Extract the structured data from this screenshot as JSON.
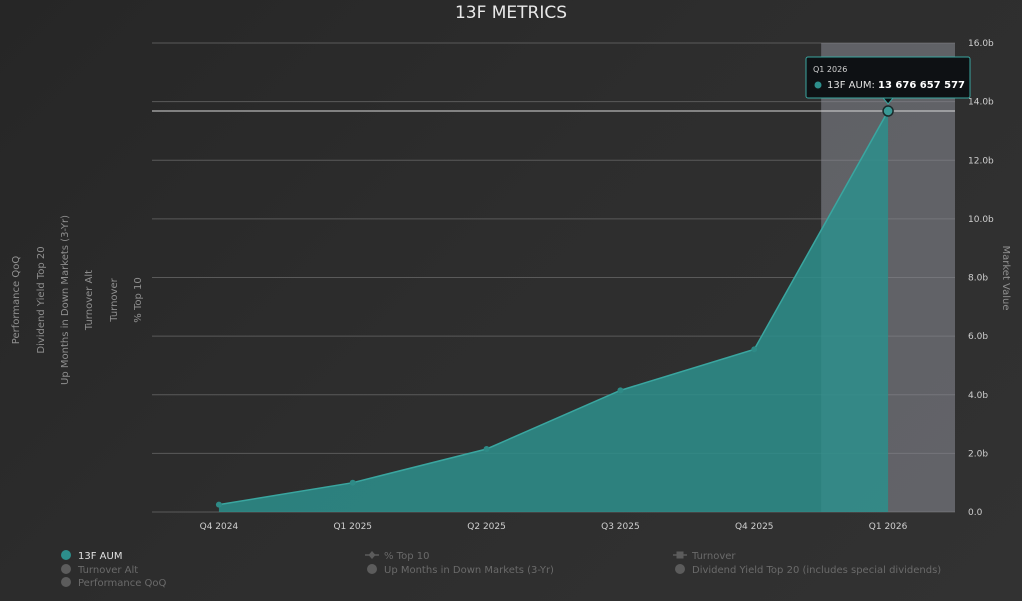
{
  "chart_data": {
    "type": "area",
    "title": "13F METRICS",
    "categories": [
      "Q4 2024",
      "Q1 2025",
      "Q2 2025",
      "Q3 2025",
      "Q4 2025",
      "Q1 2026"
    ],
    "series": [
      {
        "name": "13F AUM",
        "values": [
          0.25,
          1.0,
          2.15,
          4.15,
          5.55,
          13.68
        ],
        "color": "#2d8f8c"
      }
    ],
    "y2label": "Market Value",
    "ylim": [
      0,
      16
    ],
    "yticks": [
      "0.0",
      "2.0b",
      "4.0b",
      "6.0b",
      "8.0b",
      "10.0b",
      "12.0b",
      "14.0b",
      "16.0b"
    ],
    "yaxis_labels_left": [
      "Performance QoQ",
      "Dividend Yield Top 20",
      "Up Months in Down Markets (3-Yr)",
      "Turnover Alt",
      "Turnover",
      "% Top 10"
    ],
    "highlight_category": "Q1 2026",
    "grid": true,
    "legend": [
      {
        "label": "13F AUM",
        "active": true,
        "marker": "circle",
        "color": "#2d8f8c"
      },
      {
        "label": "% Top 10",
        "active": false,
        "marker": "line-diamond"
      },
      {
        "label": "Turnover",
        "active": false,
        "marker": "line-square"
      },
      {
        "label": "Turnover Alt",
        "active": false,
        "marker": "circle"
      },
      {
        "label": "Up Months in Down Markets (3-Yr)",
        "active": false,
        "marker": "circle"
      },
      {
        "label": "Dividend Yield Top 20 (includes special dividends)",
        "active": false,
        "marker": "circle"
      },
      {
        "label": "Performance QoQ",
        "active": false,
        "marker": "circle"
      }
    ],
    "tooltip": {
      "title": "Q1 2026",
      "series": "13F AUM:",
      "value": "13 676 657 577"
    }
  }
}
